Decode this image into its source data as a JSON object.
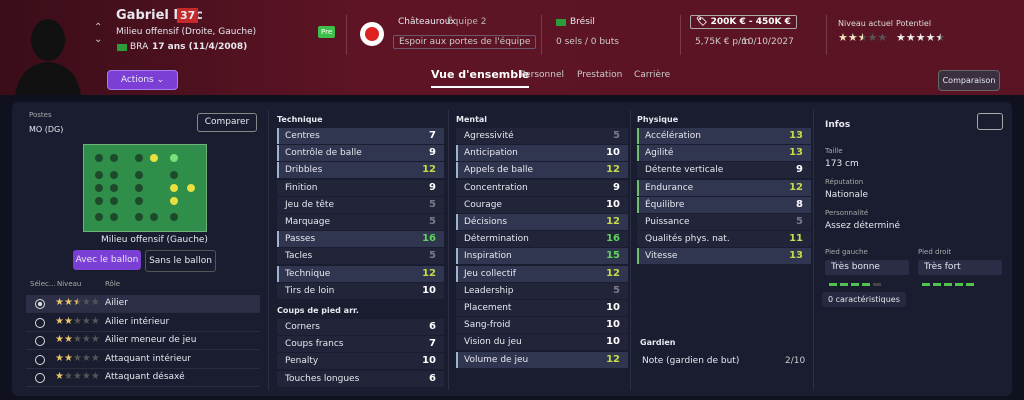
{
  "header": {
    "name": "Gabriel Mec",
    "badge": 37,
    "position": "Milieu offensif (Droite, Gauche)",
    "nationality_code": "BRA",
    "age": "17 ans (11/4/2008)",
    "actions": "Actions",
    "status": "Pre",
    "club": "Châteauroux",
    "team": "Équipe 2",
    "squad_status": "Espoir aux portes de l'équipe",
    "country": "Brésil",
    "caps": "0 sels / 0 buts",
    "value": "200K € - 450K €",
    "wage": "5,75K € p/m",
    "contract": "10/10/2027",
    "current_label": "Niveau actuel",
    "current_stars": 2.5,
    "potential_label": "Potentiel",
    "potential_stars": 4.5,
    "compare": "Comparaison"
  },
  "tabs": [
    "Vue d'ensemble",
    "Personnel",
    "Prestation",
    "Carrière"
  ],
  "positions": {
    "title": "Postes",
    "code": "MO (DG)",
    "compare": "Comparer",
    "pitch_label": "Milieu offensif (Gauche)",
    "toggles": [
      "Avec le ballon",
      "Sans le ballon"
    ],
    "columns": [
      "Sélec...",
      "Niveau",
      "Rôle"
    ],
    "roles": [
      {
        "name": "Ailier",
        "stars": 2.5
      },
      {
        "name": "Ailier intérieur",
        "stars": 2
      },
      {
        "name": "Ailier meneur de jeu",
        "stars": 2
      },
      {
        "name": "Attaquant intérieur",
        "stars": 2
      },
      {
        "name": "Attaquant désaxé",
        "stars": 1
      }
    ]
  },
  "attributes": {
    "technique": {
      "title": "Technique",
      "rows": [
        {
          "name": "Centres",
          "value": 7,
          "key": true
        },
        {
          "name": "Contrôle de balle",
          "value": 9,
          "key": true
        },
        {
          "name": "Dribbles",
          "value": 12,
          "key": true
        },
        {
          "name": "Finition",
          "value": 9,
          "key": false
        },
        {
          "name": "Jeu de tête",
          "value": 5,
          "key": false
        },
        {
          "name": "Marquage",
          "value": 5,
          "key": false
        },
        {
          "name": "Passes",
          "value": 16,
          "key": true
        },
        {
          "name": "Tacles",
          "value": 5,
          "key": false
        },
        {
          "name": "Technique",
          "value": 12,
          "key": true
        },
        {
          "name": "Tirs de loin",
          "value": 10,
          "key": false
        }
      ]
    },
    "set_pieces": {
      "title": "Coups de pied arr.",
      "rows": [
        {
          "name": "Corners",
          "value": 6,
          "key": false
        },
        {
          "name": "Coups francs",
          "value": 7,
          "key": false
        },
        {
          "name": "Penalty",
          "value": 10,
          "key": false
        },
        {
          "name": "Touches longues",
          "value": 6,
          "key": false
        }
      ]
    },
    "mental": {
      "title": "Mental",
      "rows": [
        {
          "name": "Agressivité",
          "value": 5,
          "key": false
        },
        {
          "name": "Anticipation",
          "value": 10,
          "key": true
        },
        {
          "name": "Appels de balle",
          "value": 12,
          "key": true
        },
        {
          "name": "Concentration",
          "value": 9,
          "key": false
        },
        {
          "name": "Courage",
          "value": 10,
          "key": false
        },
        {
          "name": "Décisions",
          "value": 12,
          "key": true
        },
        {
          "name": "Détermination",
          "value": 16,
          "key": false
        },
        {
          "name": "Inspiration",
          "value": 15,
          "key": true
        },
        {
          "name": "Jeu collectif",
          "value": 12,
          "key": true
        },
        {
          "name": "Leadership",
          "value": 5,
          "key": false
        },
        {
          "name": "Placement",
          "value": 10,
          "key": false
        },
        {
          "name": "Sang-froid",
          "value": 10,
          "key": false
        },
        {
          "name": "Vision du jeu",
          "value": 10,
          "key": false
        },
        {
          "name": "Volume de jeu",
          "value": 12,
          "key": true
        }
      ]
    },
    "physical": {
      "title": "Physique",
      "rows": [
        {
          "name": "Accélération",
          "value": 13,
          "key": true
        },
        {
          "name": "Agilité",
          "value": 13,
          "key": true
        },
        {
          "name": "Détente verticale",
          "value": 9,
          "key": false
        },
        {
          "name": "Endurance",
          "value": 12,
          "key": true
        },
        {
          "name": "Équilibre",
          "value": 8,
          "key": true
        },
        {
          "name": "Puissance",
          "value": 5,
          "key": false
        },
        {
          "name": "Qualités phys. nat.",
          "value": 11,
          "key": false
        },
        {
          "name": "Vitesse",
          "value": 13,
          "key": true
        }
      ]
    }
  },
  "goalkeeper": {
    "title": "Gardien",
    "label": "Note (gardien de but)",
    "rating": "2/10"
  },
  "info": {
    "title": "Infos",
    "height_label": "Taille",
    "height": "173 cm",
    "reputation_label": "Réputation",
    "reputation": "Nationale",
    "personality_label": "Personnalité",
    "personality": "Assez déterminé",
    "left_foot_label": "Pied gauche",
    "left_foot": "Très bonne",
    "left_foot_level": 4,
    "right_foot_label": "Pied droit",
    "right_foot": "Très fort",
    "right_foot_level": 5,
    "traits": "0 caractéristiques"
  }
}
